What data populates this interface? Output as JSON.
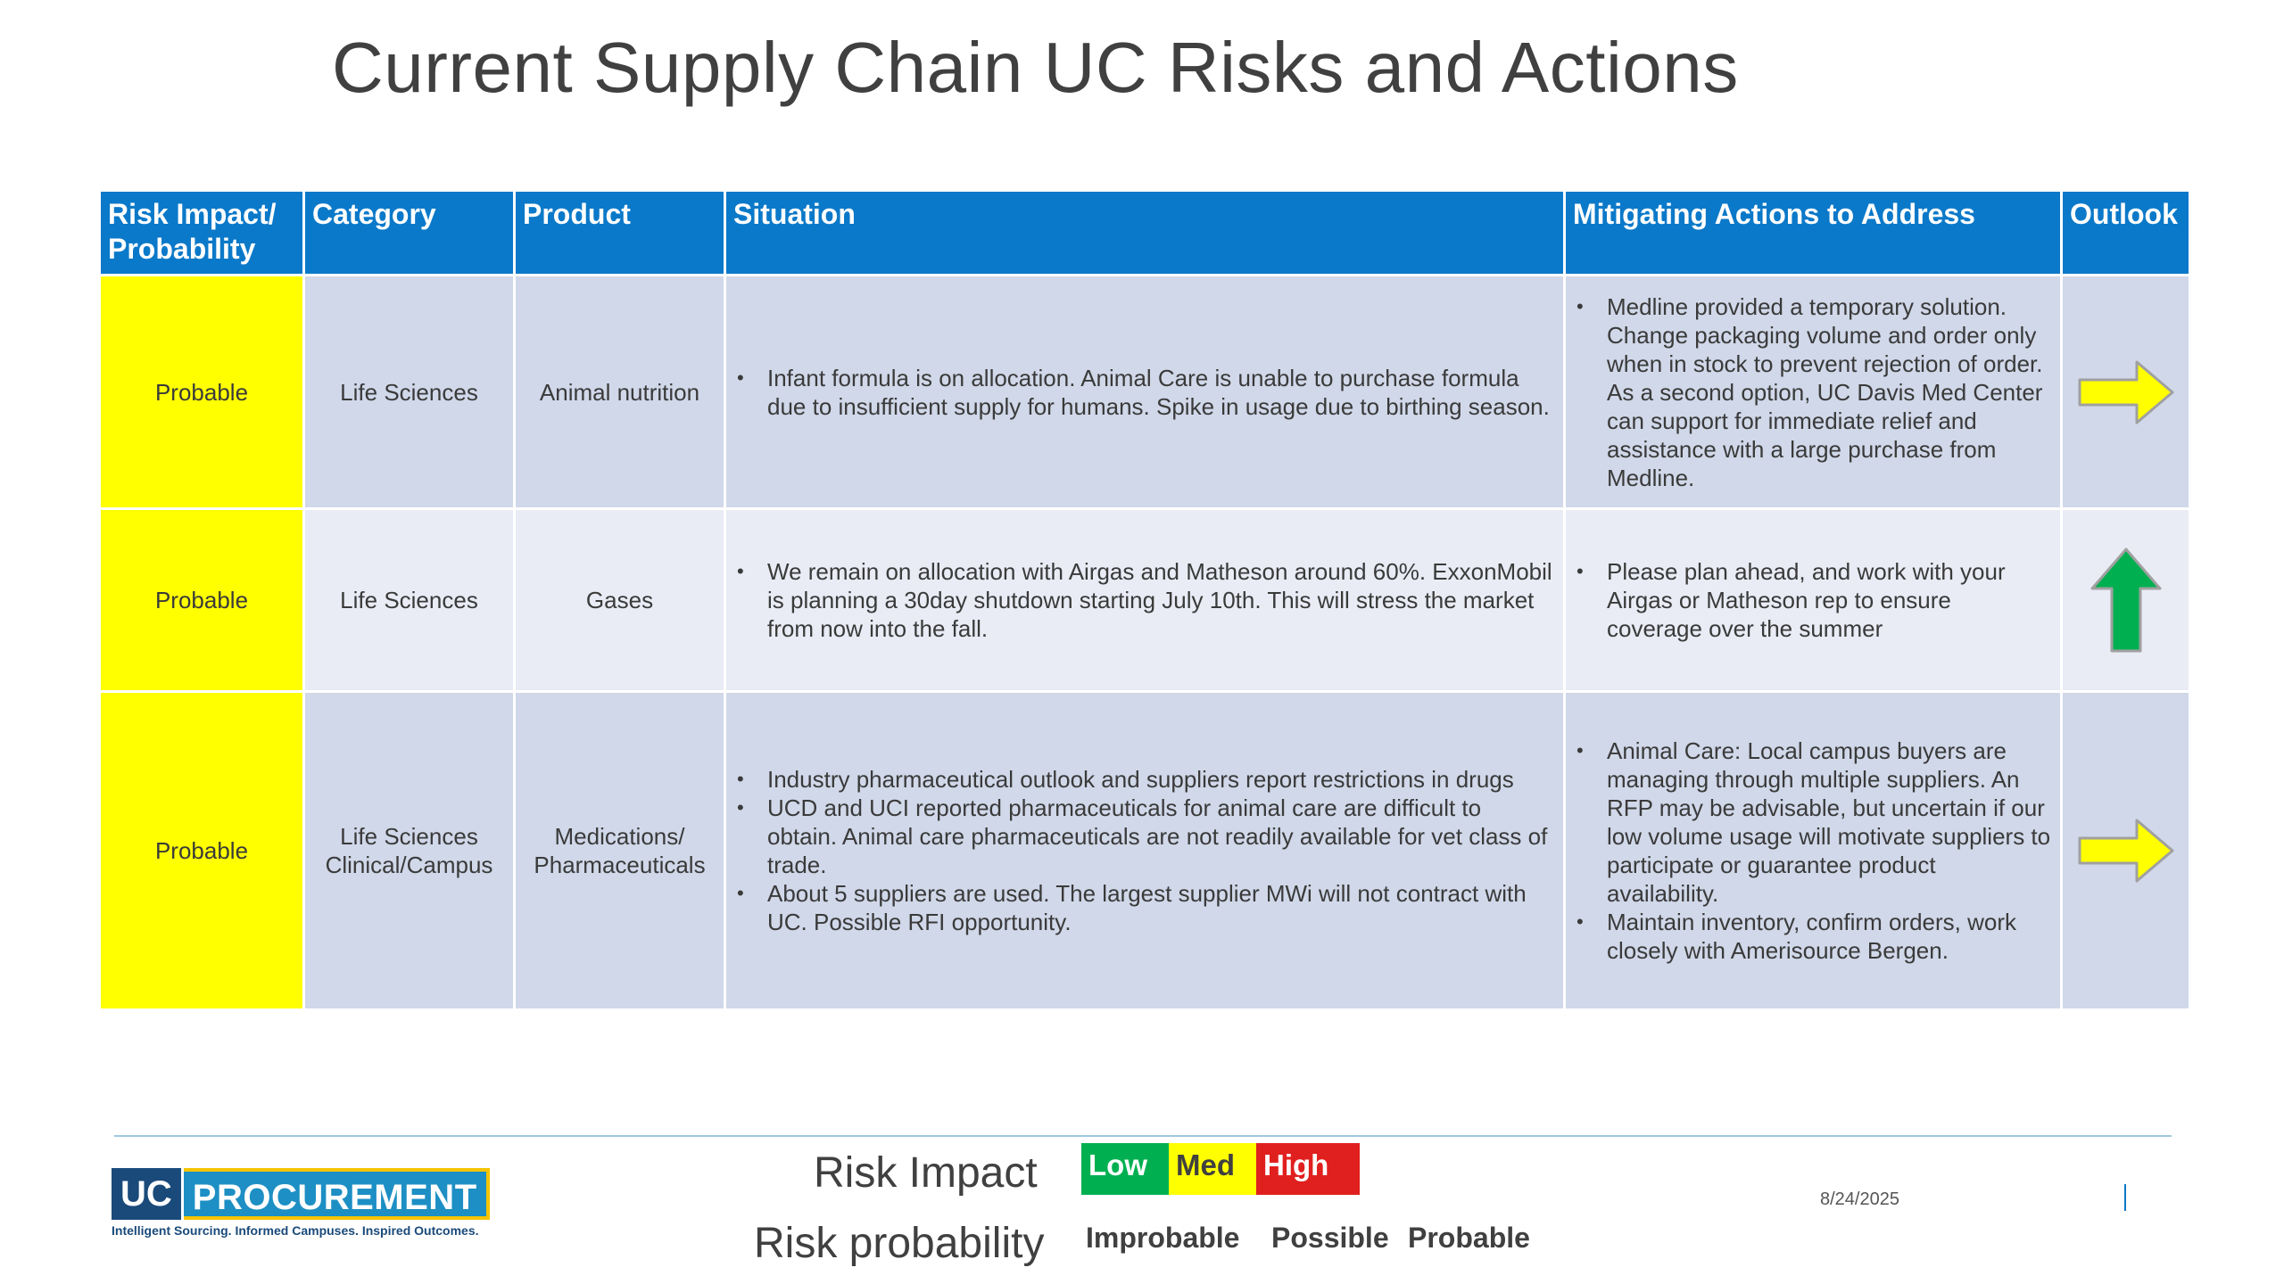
{
  "title": "Current Supply Chain UC Risks and Actions",
  "table": {
    "headers": {
      "risk": "Risk Impact/ Probability",
      "category": "Category",
      "product": "Product",
      "situation": "Situation",
      "mitigating": "Mitigating Actions to Address",
      "outlook": "Outlook"
    },
    "rows": [
      {
        "risk": "Probable",
        "category": "Life Sciences",
        "product": "Animal nutrition",
        "situation": [
          "Infant formula is on allocation. Animal Care is unable to purchase formula due to insufficient supply for humans. Spike in usage due to birthing season."
        ],
        "mitigating": [
          "Medline provided a temporary solution. Change packaging volume and order only when in stock to prevent rejection of order. As a second option, UC Davis Med Center can support for immediate relief and assistance with a large purchase from Medline."
        ],
        "outlook": "arrow-right-yellow"
      },
      {
        "risk": "Probable",
        "category": "Life Sciences",
        "product": "Gases",
        "situation": [
          "We remain on allocation with Airgas and Matheson around 60%. ExxonMobil is planning a 30day shutdown starting July 10th. This will stress the market from now into the fall."
        ],
        "mitigating": [
          "Please plan ahead, and work with your Airgas or Matheson rep to ensure coverage over the summer"
        ],
        "outlook": "arrow-up-green"
      },
      {
        "risk": "Probable",
        "category": "Life Sciences Clinical/Campus",
        "product": "Medications/ Pharmaceuticals",
        "situation": [
          "Industry pharmaceutical outlook and suppliers report restrictions in drugs",
          "UCD and UCI reported pharmaceuticals for animal care are difficult to obtain. Animal care pharmaceuticals are not readily available for vet class of trade.",
          "About 5 suppliers are used. The largest supplier MWi will not contract with UC. Possible RFI opportunity."
        ],
        "mitigating": [
          "Animal Care: Local campus buyers are managing through multiple suppliers. An RFP may be advisable, but uncertain if our low volume usage will motivate suppliers to participate or guarantee product availability.",
          "Maintain inventory, confirm orders, work closely with Amerisource Bergen."
        ],
        "outlook": "arrow-right-yellow"
      }
    ]
  },
  "footer": {
    "logo_uc": "UC",
    "logo_procurement": "PROCUREMENT",
    "logo_tagline": "Intelligent Sourcing. Informed Campuses. Inspired Outcomes.",
    "risk_impact_label": "Risk Impact",
    "risk_probability_label": "Risk probability",
    "impact_levels": [
      {
        "label": "Low",
        "bg": "#00b050",
        "fg": "#ffffff"
      },
      {
        "label": "Med",
        "bg": "#ffff00",
        "fg": "#404040"
      },
      {
        "label": "High",
        "bg": "#e0201e",
        "fg": "#ffffff"
      }
    ],
    "probability_levels": [
      "Improbable",
      "Possible",
      "Probable"
    ],
    "date": "8/24/2025"
  },
  "colors": {
    "header_blue": "#0b79c9",
    "probable_yellow": "#ffff00",
    "arrow_yellow": "#ffff00",
    "arrow_green": "#00b050"
  }
}
